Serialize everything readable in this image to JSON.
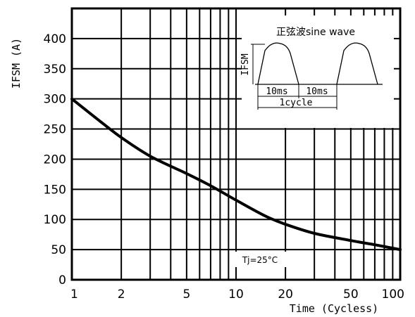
{
  "chart_data": {
    "type": "line",
    "xscale": "log",
    "xlim": [
      1,
      100
    ],
    "ylim": [
      0,
      450
    ],
    "xlabel": "Time (Cycless)",
    "ylabel": "IFSM (A)",
    "xticks": [
      1,
      2,
      5,
      10,
      20,
      50,
      100
    ],
    "xtick_labels": [
      "1",
      "2",
      "5",
      "10",
      "20",
      "50",
      "100"
    ],
    "yticks": [
      0,
      50,
      100,
      150,
      200,
      250,
      300,
      350,
      400
    ],
    "ytick_labels": [
      "0",
      "50",
      "100",
      "150",
      "200",
      "250",
      "300",
      "350",
      "400"
    ],
    "xgrid_minor": [
      1,
      2,
      3,
      4,
      5,
      6,
      7,
      8,
      9,
      10,
      20,
      30,
      40,
      50,
      60,
      70,
      80,
      90,
      100
    ],
    "grid": true,
    "series": [
      {
        "x": [
          1,
          1.5,
          2,
          3,
          5,
          7,
          10,
          15,
          20,
          30,
          50,
          70,
          100
        ],
        "values": [
          300,
          262,
          236,
          205,
          176,
          156,
          132,
          106,
          92,
          77,
          65,
          58,
          50
        ]
      }
    ],
    "annotation": "Tj=25°C",
    "inset": {
      "title": "正弦波sine wave",
      "ylabel": "IFSM",
      "half_cycle_label_1": "10ms",
      "half_cycle_label_2": "10ms",
      "cycle_label": "1cycle"
    }
  }
}
